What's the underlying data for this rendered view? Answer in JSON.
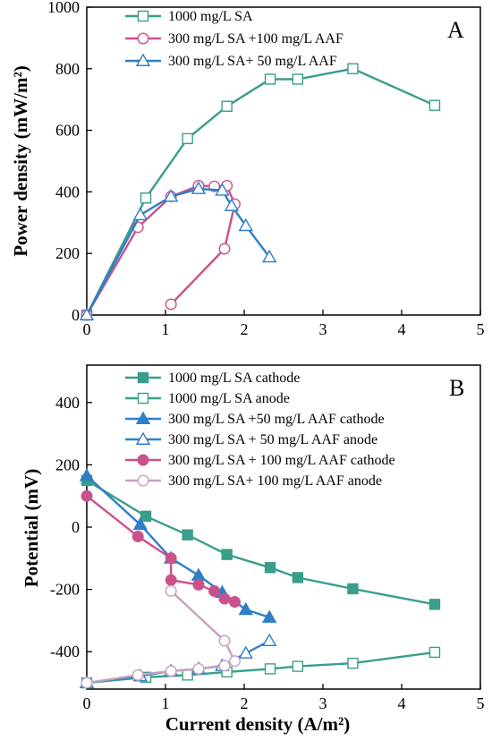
{
  "chart_data": [
    {
      "type": "line",
      "panel_label": "A",
      "ylabel": "Power density (mW/m²)",
      "xlim": [
        0,
        5
      ],
      "ylim": [
        0,
        1000
      ],
      "x_ticks": [
        0,
        1,
        2,
        3,
        4,
        5
      ],
      "y_ticks": [
        0,
        200,
        400,
        600,
        800,
        1000
      ],
      "legend_position": "top-left",
      "series": [
        {
          "name": "1000 mg/L SA",
          "color": "#3a9e8a",
          "marker": "square",
          "filled": false,
          "x": [
            0,
            0.75,
            1.28,
            1.78,
            2.33,
            2.68,
            3.38,
            4.42
          ],
          "y": [
            0,
            380,
            573,
            678,
            766,
            766,
            800,
            681
          ]
        },
        {
          "name": "300 mg/L SA +100 mg/L AAF",
          "color": "#c9528a",
          "marker": "circle",
          "filled": false,
          "x": [
            0,
            0.65,
            1.07,
            1.42,
            1.62,
            1.78,
            1.88,
            1.75,
            1.07
          ],
          "y": [
            0,
            285,
            385,
            420,
            418,
            420,
            360,
            215,
            35
          ]
        },
        {
          "name": "300 mg/L SA+ 50 mg/L AAF",
          "color": "#2f7ec6",
          "marker": "triangle",
          "filled": false,
          "x": [
            0,
            0.68,
            1.07,
            1.42,
            1.72,
            1.84,
            2.02,
            2.32
          ],
          "y": [
            0,
            325,
            385,
            410,
            405,
            355,
            290,
            188
          ]
        }
      ]
    },
    {
      "type": "line",
      "panel_label": "B",
      "xlabel": "Current density (A/m²)",
      "ylabel": "Potential (mV)",
      "xlim": [
        0,
        5
      ],
      "ylim": [
        -520,
        520
      ],
      "x_ticks": [
        0,
        1,
        2,
        3,
        4,
        5
      ],
      "y_ticks": [
        -400,
        -200,
        0,
        200,
        400
      ],
      "legend_position": "top-center",
      "series": [
        {
          "name": "1000 mg/L SA cathode",
          "color": "#3a9e8a",
          "marker": "square",
          "filled": true,
          "x": [
            0,
            0.75,
            1.28,
            1.78,
            2.33,
            2.68,
            3.38,
            4.42
          ],
          "y": [
            150,
            35,
            -25,
            -88,
            -130,
            -162,
            -198,
            -248
          ]
        },
        {
          "name": "1000 mg/L SA anode",
          "color": "#3a9e8a",
          "marker": "square",
          "filled": false,
          "x": [
            0,
            0.75,
            1.28,
            1.78,
            2.33,
            2.68,
            3.38,
            4.42
          ],
          "y": [
            -500,
            -482,
            -475,
            -465,
            -455,
            -447,
            -437,
            -402
          ]
        },
        {
          "name": "300 mg/L SA +50 mg/L AAF cathode",
          "color": "#2f7ec6",
          "marker": "triangle",
          "filled": true,
          "x": [
            0,
            0.68,
            1.07,
            1.42,
            1.72,
            2.02,
            2.32
          ],
          "y": [
            165,
            8,
            -100,
            -155,
            -210,
            -265,
            -290
          ]
        },
        {
          "name": "300 mg/L SA + 50 mg/L AAF anode",
          "color": "#2f7ec6",
          "marker": "triangle",
          "filled": false,
          "x": [
            0,
            0.68,
            1.07,
            1.42,
            1.72,
            2.02,
            2.32
          ],
          "y": [
            -500,
            -478,
            -462,
            -455,
            -445,
            -405,
            -365
          ]
        },
        {
          "name": "300 mg/L SA + 100 mg/L AAF cathode",
          "color": "#c9528a",
          "marker": "circle",
          "filled": true,
          "x": [
            0,
            0.65,
            1.07,
            1.07,
            1.42,
            1.62,
            1.75,
            1.88
          ],
          "y": [
            100,
            -30,
            -100,
            -170,
            -185,
            -205,
            -230,
            -240
          ]
        },
        {
          "name": "300 mg/L SA+ 100 mg/L AAF anode",
          "color": "#c9a0c0",
          "marker": "circle",
          "filled": false,
          "x": [
            0,
            0.65,
            1.07,
            1.42,
            1.75,
            1.88,
            1.75,
            1.07
          ],
          "y": [
            -500,
            -475,
            -462,
            -455,
            -445,
            -430,
            -365,
            -205
          ]
        }
      ]
    }
  ]
}
